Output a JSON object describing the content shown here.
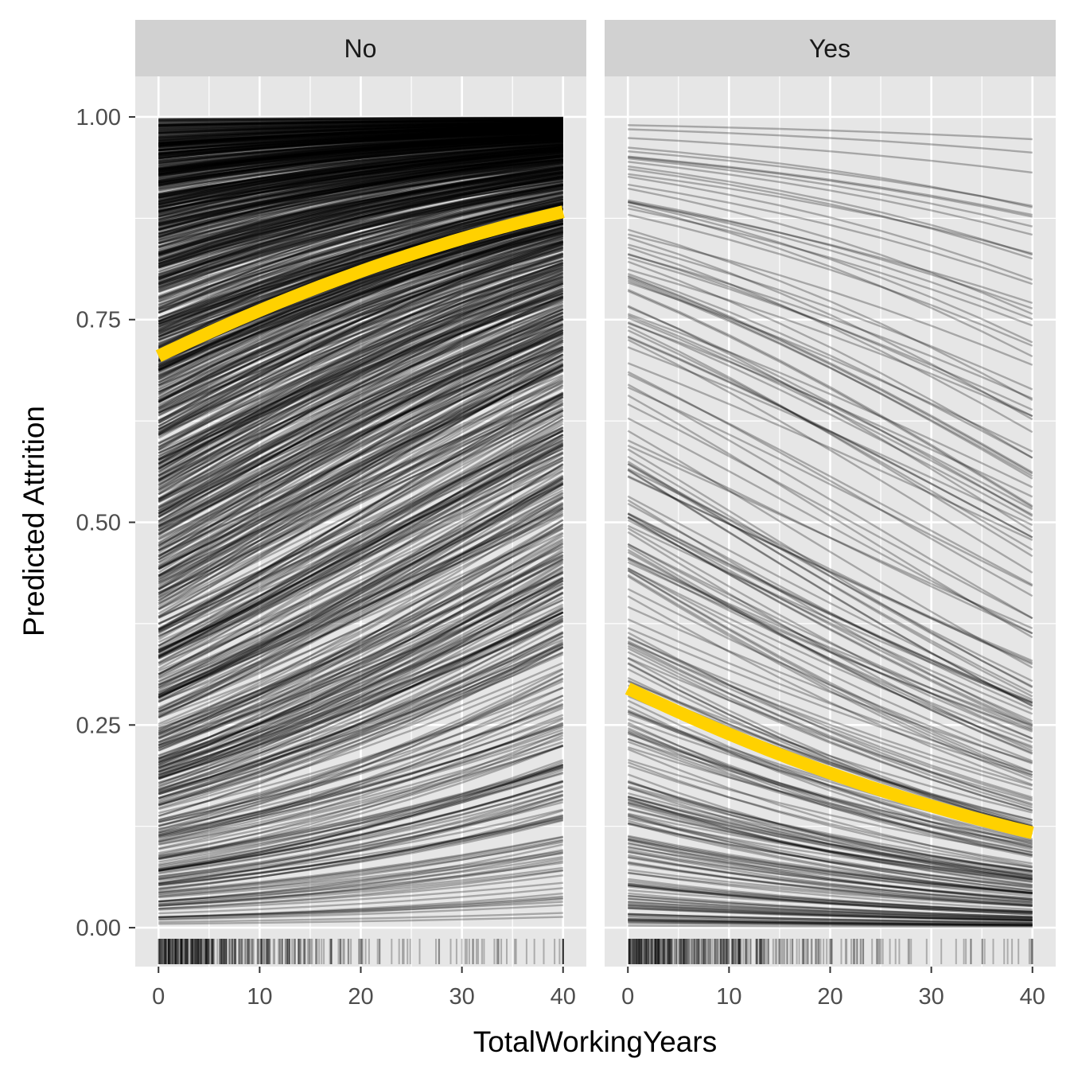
{
  "chart_data": {
    "type": "line",
    "xlabel": "TotalWorkingYears",
    "ylabel": "Predicted Attrition",
    "xlim": [
      -2.3,
      42.3
    ],
    "ylim": [
      -0.048,
      1.05
    ],
    "x_ticks": [
      "0",
      "10",
      "20",
      "30",
      "40"
    ],
    "y_ticks": [
      "0.00",
      "0.25",
      "0.50",
      "0.75",
      "1.00"
    ],
    "grid": true,
    "legend": "none",
    "rug": true,
    "colors": {
      "panel_bg": "#e6e6e6",
      "strip_bg": "#d1d1d1",
      "grid": "#ffffff",
      "ice_lines": "#000000",
      "average_line": "#ffd100"
    },
    "panels": [
      {
        "label": "No",
        "average_curve": {
          "x": [
            0,
            10,
            20,
            30,
            40
          ],
          "y": [
            0.705,
            0.759,
            0.807,
            0.848,
            0.883
          ]
        },
        "ice_curve_count": 1233,
        "ice_x_range": [
          0,
          40
        ]
      },
      {
        "label": "Yes",
        "average_curve": {
          "x": [
            0,
            10,
            20,
            30,
            40
          ],
          "y": [
            0.295,
            0.241,
            0.193,
            0.152,
            0.117
          ]
        },
        "ice_curve_count": 237,
        "ice_x_range": [
          0,
          40
        ]
      }
    ]
  }
}
